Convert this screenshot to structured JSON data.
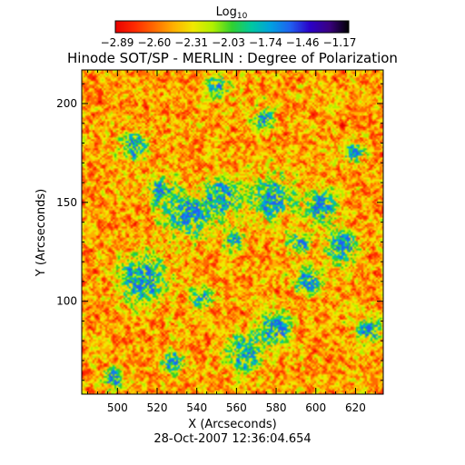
{
  "chart_data": {
    "type": "heatmap",
    "title": "Hinode SOT/SP - MERLIN : Degree of Polarization",
    "xlabel": "X (Arcseconds)",
    "ylabel": "Y (Arcseconds)",
    "date": "28-Oct-2007 12:36:04.654",
    "xlim": [
      482,
      634
    ],
    "ylim": [
      53,
      217
    ],
    "x_ticks": [
      500,
      520,
      540,
      560,
      580,
      600,
      620
    ],
    "y_ticks": [
      100,
      150,
      200
    ],
    "colorbar": {
      "label_base": "Log",
      "label_sub": "10",
      "range": [
        -2.89,
        -1.17
      ],
      "tick_labels": [
        "-2.89",
        "-2.60",
        "-2.31",
        "-2.03",
        "-1.74",
        "-1.46",
        "-1.17"
      ]
    }
  },
  "colors": {
    "colormap": [
      "#e80000",
      "#ff2a00",
      "#ff6a00",
      "#ffb000",
      "#f0e800",
      "#b0f000",
      "#30d030",
      "#00c8a0",
      "#00a0e0",
      "#2060f0",
      "#2a00c8",
      "#3a0080",
      "#000000"
    ]
  }
}
